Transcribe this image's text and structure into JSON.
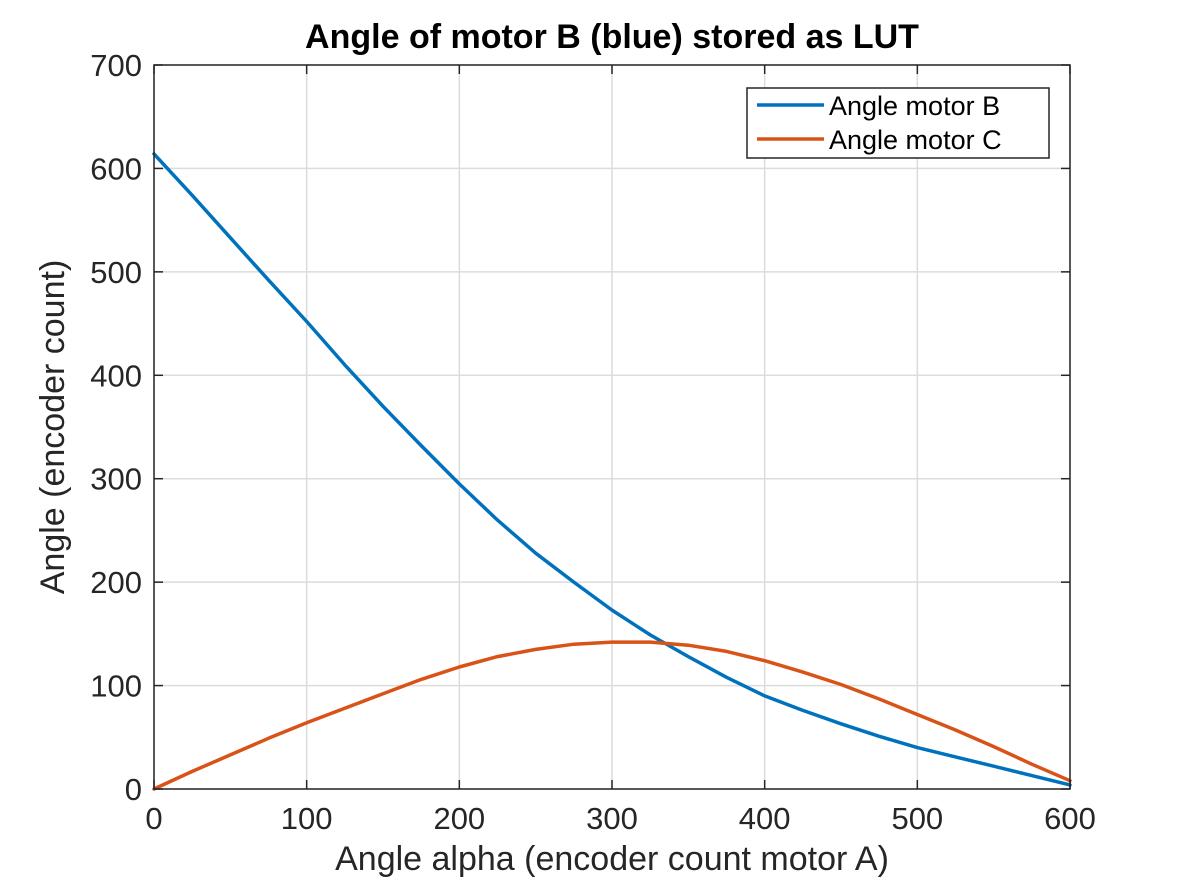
{
  "chart_data": {
    "type": "line",
    "title": "Angle of motor B (blue) stored as LUT",
    "xlabel": "Angle alpha (encoder count motor A)",
    "ylabel": "Angle (encoder count)",
    "xlim": [
      0,
      600
    ],
    "ylim": [
      0,
      700
    ],
    "xticks": [
      0,
      100,
      200,
      300,
      400,
      500,
      600
    ],
    "yticks": [
      0,
      100,
      200,
      300,
      400,
      500,
      600,
      700
    ],
    "xtick_labels": [
      "0",
      "100",
      "200",
      "300",
      "400",
      "500",
      "600"
    ],
    "ytick_labels": [
      "0",
      "100",
      "200",
      "300",
      "400",
      "500",
      "600",
      "700"
    ],
    "grid": true,
    "legend_position": "top-right",
    "series": [
      {
        "name": "Angle motor B",
        "color": "#0072BD",
        "x": [
          0,
          25,
          50,
          75,
          100,
          125,
          150,
          175,
          200,
          225,
          250,
          275,
          300,
          325,
          350,
          375,
          400,
          425,
          450,
          475,
          500,
          525,
          550,
          575,
          600
        ],
        "y": [
          614,
          574,
          533,
          492,
          452,
          410,
          370,
          332,
          295,
          260,
          228,
          200,
          173,
          149,
          128,
          108,
          90,
          76,
          63,
          51,
          40,
          31,
          22,
          13,
          4
        ]
      },
      {
        "name": "Angle motor C",
        "color": "#D95319",
        "x": [
          0,
          25,
          50,
          75,
          100,
          125,
          150,
          175,
          200,
          225,
          250,
          275,
          300,
          325,
          350,
          375,
          400,
          425,
          450,
          475,
          500,
          525,
          550,
          575,
          600
        ],
        "y": [
          0,
          17,
          33,
          49,
          64,
          78,
          92,
          106,
          118,
          128,
          135,
          140,
          142,
          142,
          139,
          133,
          124,
          113,
          101,
          87,
          72,
          57,
          41,
          24,
          8
        ]
      }
    ]
  }
}
